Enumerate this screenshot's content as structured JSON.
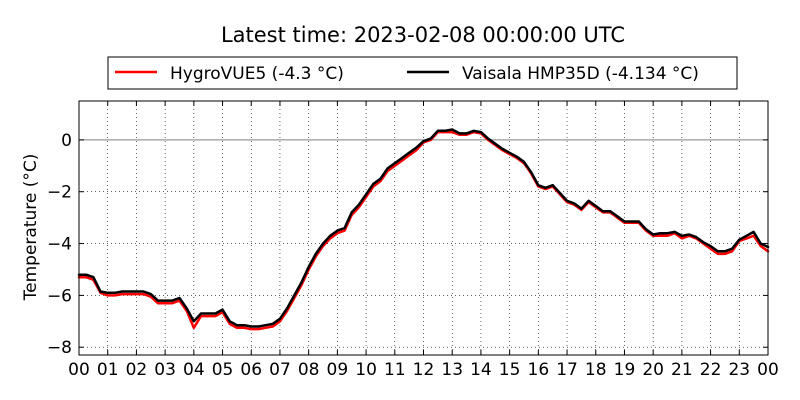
{
  "chart_data": {
    "type": "line",
    "title": "Latest time: 2023-02-08 00:00:00 UTC",
    "xlabel": "",
    "ylabel": "Temperature (°C)",
    "xlim": [
      0,
      24
    ],
    "ylim": [
      -8.3,
      1.5
    ],
    "x_ticks": [
      0,
      1,
      2,
      3,
      4,
      5,
      6,
      7,
      8,
      9,
      10,
      11,
      12,
      13,
      14,
      15,
      16,
      17,
      18,
      19,
      20,
      21,
      22,
      23,
      24
    ],
    "x_tick_labels": [
      "00",
      "01",
      "02",
      "03",
      "04",
      "05",
      "06",
      "07",
      "08",
      "09",
      "10",
      "11",
      "12",
      "13",
      "14",
      "15",
      "16",
      "17",
      "18",
      "19",
      "20",
      "21",
      "22",
      "23",
      "00"
    ],
    "y_ticks": [
      -8,
      -6,
      -4,
      -2,
      0
    ],
    "y_tick_labels": [
      "−8",
      "−6",
      "−4",
      "−2",
      "0"
    ],
    "grid": true,
    "zero_line": true,
    "legend_position": "top-center",
    "series": [
      {
        "name": "HygroVUE5 (-4.3 °C)",
        "color": "#ff0000",
        "x": [
          0,
          0.25,
          0.5,
          0.75,
          1,
          1.25,
          1.5,
          1.75,
          2,
          2.25,
          2.5,
          2.75,
          3,
          3.25,
          3.5,
          3.75,
          4,
          4.25,
          4.5,
          4.75,
          5,
          5.25,
          5.5,
          5.75,
          6,
          6.25,
          6.5,
          6.75,
          7,
          7.25,
          7.5,
          7.75,
          8,
          8.25,
          8.5,
          8.75,
          9,
          9.25,
          9.5,
          9.75,
          10,
          10.25,
          10.5,
          10.75,
          11,
          11.25,
          11.5,
          11.75,
          12,
          12.25,
          12.5,
          12.75,
          13,
          13.25,
          13.5,
          13.75,
          14,
          14.25,
          14.5,
          14.75,
          15,
          15.25,
          15.5,
          15.75,
          16,
          16.25,
          16.5,
          16.75,
          17,
          17.25,
          17.5,
          17.75,
          18,
          18.25,
          18.5,
          18.75,
          19,
          19.25,
          19.5,
          19.75,
          20,
          20.25,
          20.5,
          20.75,
          21,
          21.25,
          21.5,
          21.75,
          22,
          22.25,
          22.5,
          22.75,
          23,
          23.25,
          23.5,
          23.75,
          24
        ],
        "values": [
          -5.3,
          -5.3,
          -5.4,
          -5.9,
          -6.0,
          -6.0,
          -5.95,
          -5.95,
          -5.95,
          -5.95,
          -6.05,
          -6.3,
          -6.3,
          -6.3,
          -6.2,
          -6.6,
          -7.25,
          -6.8,
          -6.8,
          -6.8,
          -6.65,
          -7.1,
          -7.25,
          -7.25,
          -7.3,
          -7.3,
          -7.25,
          -7.2,
          -7.0,
          -6.6,
          -6.1,
          -5.6,
          -5.0,
          -4.5,
          -4.1,
          -3.8,
          -3.6,
          -3.5,
          -2.9,
          -2.6,
          -2.2,
          -1.8,
          -1.6,
          -1.2,
          -1.0,
          -0.8,
          -0.6,
          -0.4,
          -0.1,
          0.0,
          0.3,
          0.3,
          0.3,
          0.2,
          0.2,
          0.3,
          0.25,
          0.0,
          -0.2,
          -0.4,
          -0.55,
          -0.7,
          -0.9,
          -1.3,
          -1.8,
          -1.9,
          -1.8,
          -2.1,
          -2.4,
          -2.5,
          -2.7,
          -2.4,
          -2.6,
          -2.8,
          -2.8,
          -3.0,
          -3.2,
          -3.2,
          -3.2,
          -3.5,
          -3.7,
          -3.7,
          -3.7,
          -3.6,
          -3.8,
          -3.7,
          -3.8,
          -4.0,
          -4.2,
          -4.4,
          -4.4,
          -4.3,
          -3.9,
          -3.8,
          -3.7,
          -4.1,
          -4.3
        ]
      },
      {
        "name": "Vaisala HMP35D (-4.134 °C)",
        "color": "#000000",
        "x": [
          0,
          0.25,
          0.5,
          0.75,
          1,
          1.25,
          1.5,
          1.75,
          2,
          2.25,
          2.5,
          2.75,
          3,
          3.25,
          3.5,
          3.75,
          4,
          4.25,
          4.5,
          4.75,
          5,
          5.25,
          5.5,
          5.75,
          6,
          6.25,
          6.5,
          6.75,
          7,
          7.25,
          7.5,
          7.75,
          8,
          8.25,
          8.5,
          8.75,
          9,
          9.25,
          9.5,
          9.75,
          10,
          10.25,
          10.5,
          10.75,
          11,
          11.25,
          11.5,
          11.75,
          12,
          12.25,
          12.5,
          12.75,
          13,
          13.25,
          13.5,
          13.75,
          14,
          14.25,
          14.5,
          14.75,
          15,
          15.25,
          15.5,
          15.75,
          16,
          16.25,
          16.5,
          16.75,
          17,
          17.25,
          17.5,
          17.75,
          18,
          18.25,
          18.5,
          18.75,
          19,
          19.25,
          19.5,
          19.75,
          20,
          20.25,
          20.5,
          20.75,
          21,
          21.25,
          21.5,
          21.75,
          22,
          22.25,
          22.5,
          22.75,
          23,
          23.25,
          23.5,
          23.75,
          24
        ],
        "values": [
          -5.2,
          -5.2,
          -5.3,
          -5.85,
          -5.9,
          -5.9,
          -5.85,
          -5.85,
          -5.85,
          -5.85,
          -5.95,
          -6.2,
          -6.2,
          -6.2,
          -6.1,
          -6.5,
          -7.0,
          -6.7,
          -6.7,
          -6.7,
          -6.55,
          -7.0,
          -7.15,
          -7.15,
          -7.2,
          -7.2,
          -7.15,
          -7.1,
          -6.9,
          -6.5,
          -6.0,
          -5.5,
          -4.9,
          -4.4,
          -4.0,
          -3.7,
          -3.5,
          -3.4,
          -2.8,
          -2.5,
          -2.1,
          -1.7,
          -1.5,
          -1.1,
          -0.9,
          -0.7,
          -0.5,
          -0.3,
          -0.05,
          0.05,
          0.35,
          0.35,
          0.4,
          0.25,
          0.25,
          0.35,
          0.3,
          0.05,
          -0.15,
          -0.35,
          -0.5,
          -0.65,
          -0.85,
          -1.25,
          -1.75,
          -1.85,
          -1.75,
          -2.05,
          -2.35,
          -2.45,
          -2.65,
          -2.35,
          -2.55,
          -2.75,
          -2.75,
          -2.95,
          -3.15,
          -3.15,
          -3.15,
          -3.45,
          -3.65,
          -3.6,
          -3.6,
          -3.55,
          -3.7,
          -3.65,
          -3.75,
          -3.95,
          -4.1,
          -4.3,
          -4.3,
          -4.2,
          -3.85,
          -3.7,
          -3.55,
          -4.0,
          -4.134
        ]
      }
    ]
  }
}
